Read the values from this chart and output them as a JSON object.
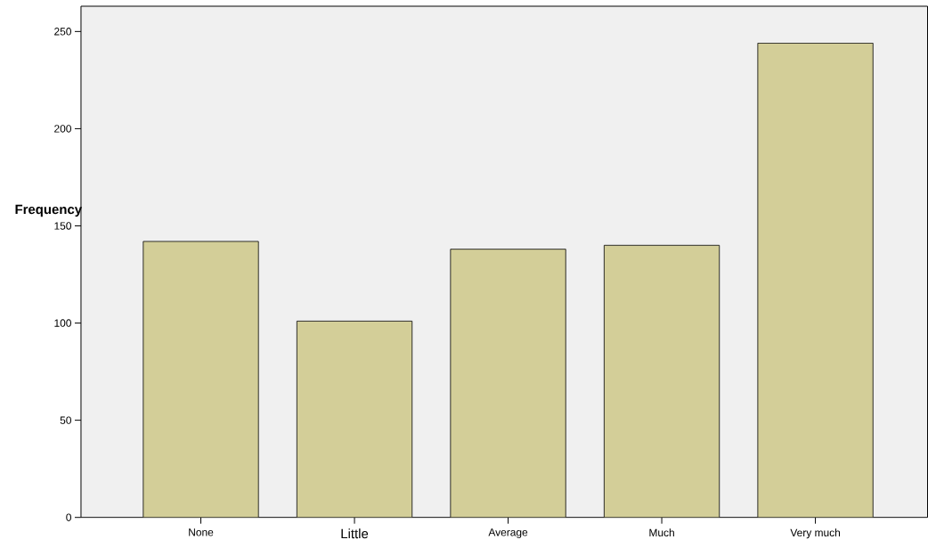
{
  "chart_data": {
    "type": "bar",
    "ylabel": "Frequency",
    "categories": [
      "None",
      "Little",
      "Average",
      "Much",
      "Very much"
    ],
    "values": [
      142,
      101,
      138,
      140,
      244
    ],
    "color": "#d3ce98",
    "ylim": [
      0,
      263
    ],
    "yticks": [
      0,
      50,
      100,
      150,
      200,
      250
    ]
  }
}
